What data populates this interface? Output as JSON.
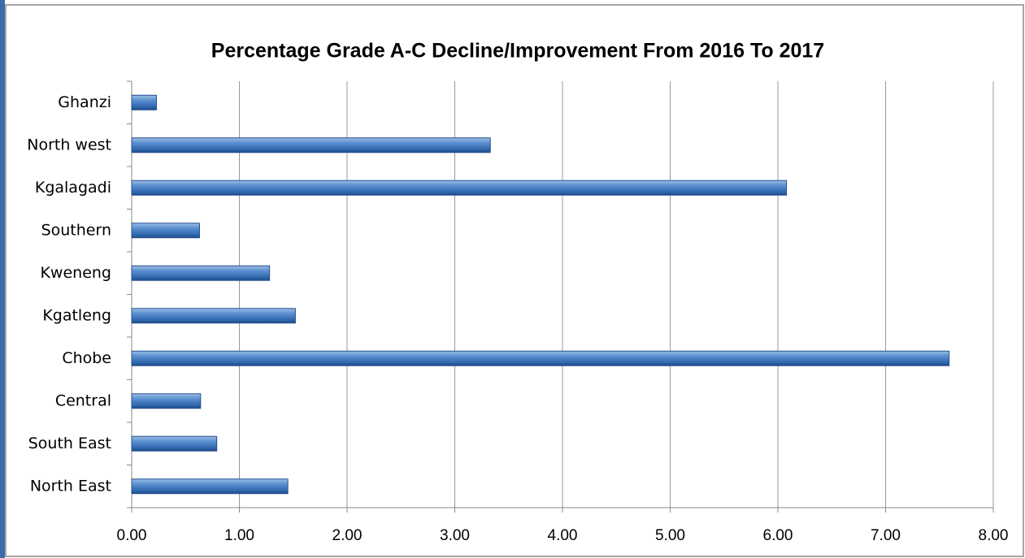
{
  "chart_data": {
    "type": "bar",
    "orientation": "horizontal",
    "title": "Percentage Grade A-C Decline/Improvement From 2016 To 2017",
    "categories": [
      "Ghanzi",
      "North west",
      "Kgalagadi",
      "Southern",
      "Kweneng",
      "Kgatleng",
      "Chobe",
      "Central",
      "South East",
      "North East"
    ],
    "values": [
      0.23,
      3.33,
      6.08,
      0.63,
      1.28,
      1.52,
      7.59,
      0.64,
      0.79,
      1.45
    ],
    "color": "#4f81bd",
    "xlim": [
      0,
      8
    ],
    "xticks": [
      {
        "value": 0,
        "label": "0.00"
      },
      {
        "value": 1,
        "label": "1.00"
      },
      {
        "value": 2,
        "label": "2.00"
      },
      {
        "value": 3,
        "label": "3.00"
      },
      {
        "value": 4,
        "label": "4.00"
      },
      {
        "value": 5,
        "label": "5.00"
      },
      {
        "value": 6,
        "label": "6.00"
      },
      {
        "value": 7,
        "label": "7.00"
      },
      {
        "value": 8,
        "label": "8.00"
      }
    ],
    "grid": true
  }
}
